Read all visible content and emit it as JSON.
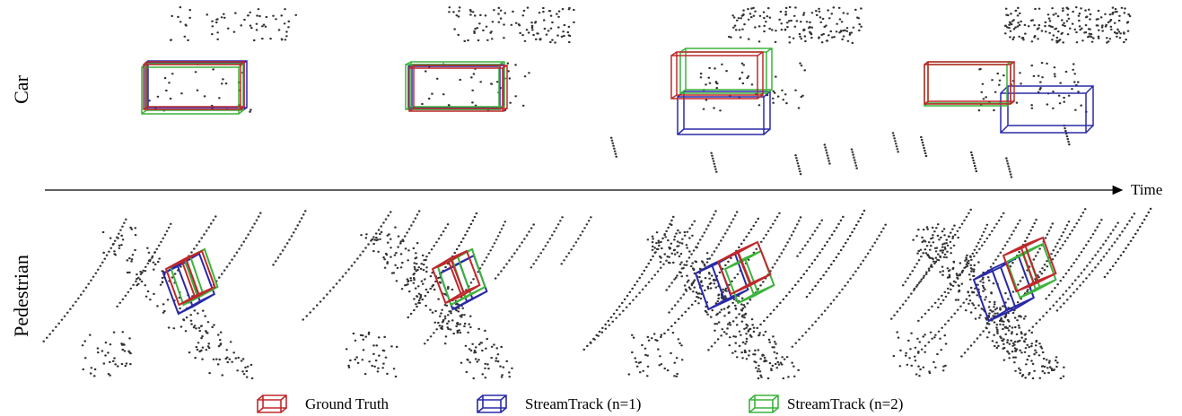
{
  "rows": [
    {
      "label": "Car"
    },
    {
      "label": "Pedestrian"
    }
  ],
  "axis": {
    "label": "Time"
  },
  "legend": [
    {
      "name": "Ground Truth",
      "color": "#c0282c"
    },
    {
      "name": "StreamTrack (n=1)",
      "color": "#2a2aa8"
    },
    {
      "name": "StreamTrack (n=2)",
      "color": "#3cb43c"
    }
  ]
}
